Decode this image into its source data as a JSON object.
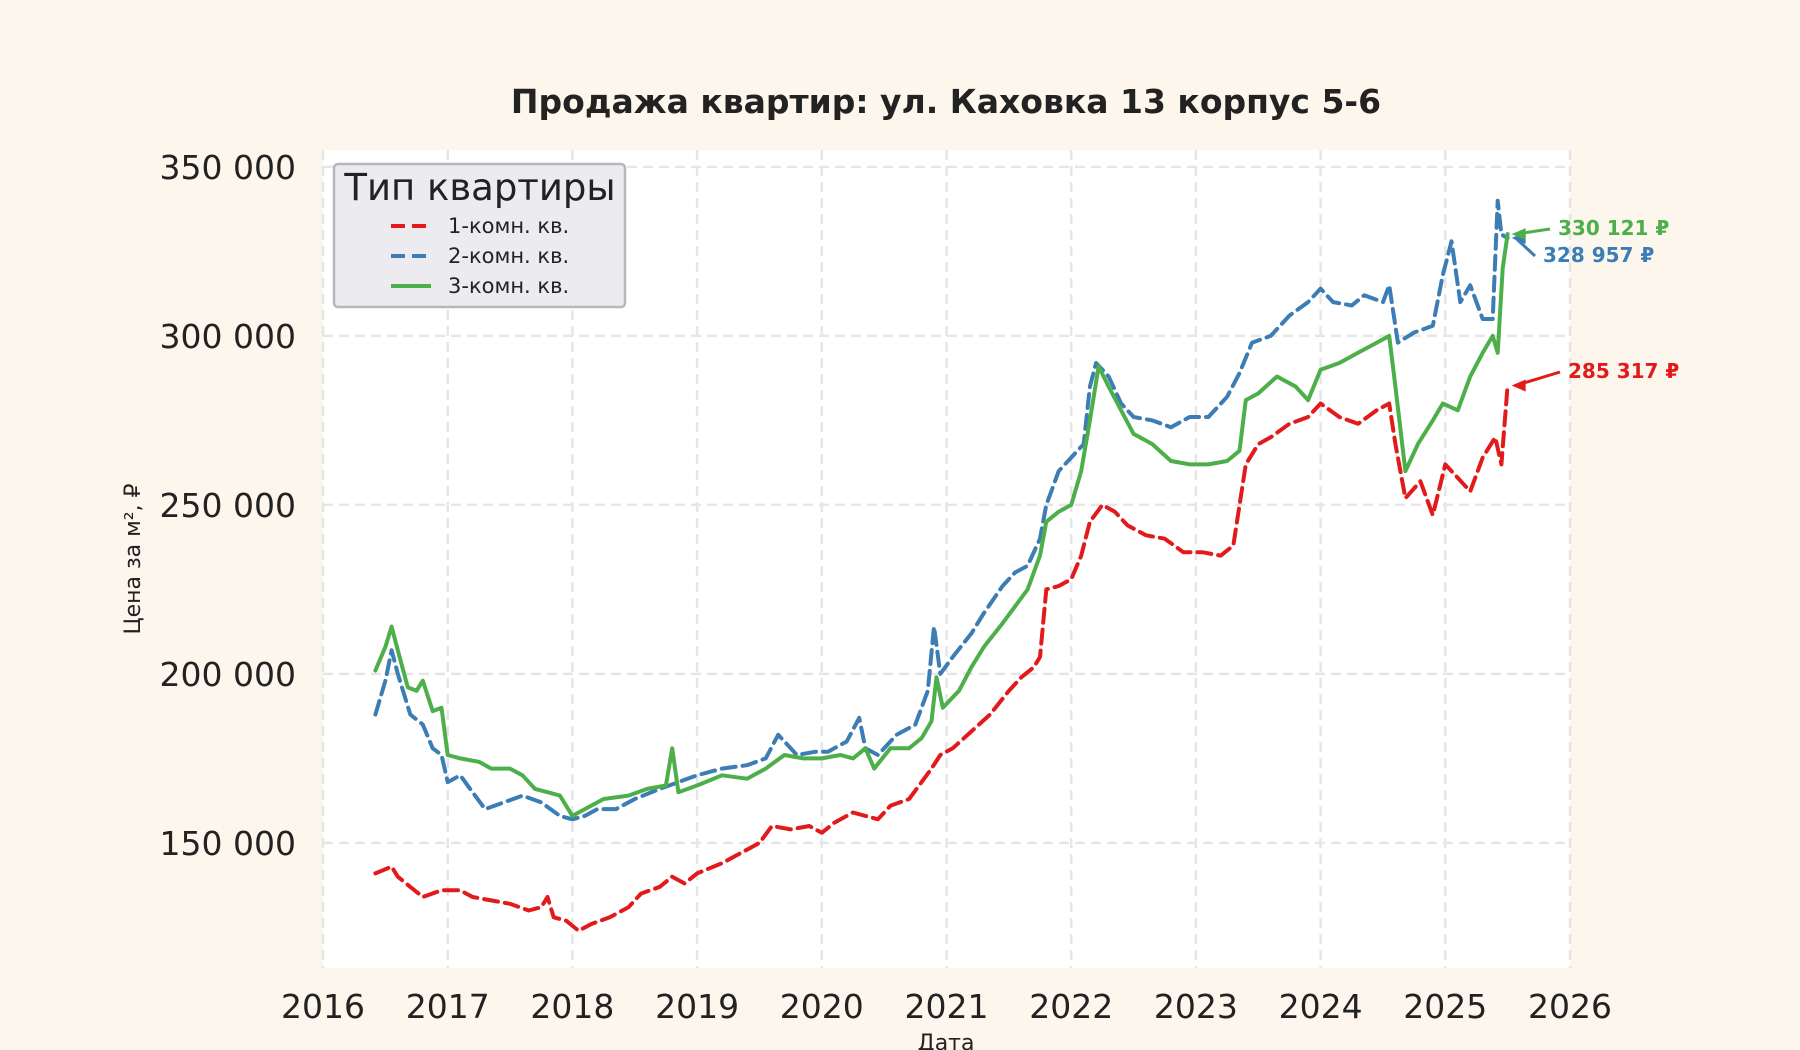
{
  "chart_data": {
    "type": "line",
    "title": "Продажа квартир: ул. Каховка 13 корпус 5-6",
    "xlabel": "Дата",
    "ylabel": "Цена за м², ₽",
    "xlim": [
      2016,
      2026
    ],
    "ylim": [
      113000,
      355000
    ],
    "x_ticks": [
      2016,
      2017,
      2018,
      2019,
      2020,
      2021,
      2022,
      2023,
      2024,
      2025,
      2026
    ],
    "x_tick_labels": [
      "2016",
      "2017",
      "2018",
      "2019",
      "2020",
      "2021",
      "2022",
      "2023",
      "2024",
      "2025",
      "2026"
    ],
    "y_ticks": [
      150000,
      200000,
      250000,
      300000,
      350000
    ],
    "y_tick_labels": [
      "150 000",
      "200 000",
      "250 000",
      "300 000",
      "350 000"
    ],
    "grid": true,
    "legend": {
      "title": "Тип квартиры",
      "placement": "top-left"
    },
    "series": [
      {
        "name": "1-комн. кв.",
        "color": "#e31a1c",
        "line_style": "dashed",
        "end_label": "285 317 ₽",
        "end_value": 285317,
        "points": [
          [
            2016.42,
            141000
          ],
          [
            2016.55,
            143000
          ],
          [
            2016.6,
            140000
          ],
          [
            2016.7,
            137000
          ],
          [
            2016.8,
            134000
          ],
          [
            2016.95,
            136000
          ],
          [
            2017.1,
            136000
          ],
          [
            2017.2,
            134000
          ],
          [
            2017.35,
            133000
          ],
          [
            2017.5,
            132000
          ],
          [
            2017.65,
            130000
          ],
          [
            2017.75,
            131000
          ],
          [
            2017.8,
            134000
          ],
          [
            2017.85,
            128000
          ],
          [
            2017.95,
            127000
          ],
          [
            2018.05,
            124000
          ],
          [
            2018.15,
            126000
          ],
          [
            2018.3,
            128000
          ],
          [
            2018.45,
            131000
          ],
          [
            2018.55,
            135000
          ],
          [
            2018.7,
            137000
          ],
          [
            2018.8,
            140000
          ],
          [
            2018.9,
            138000
          ],
          [
            2019.0,
            141000
          ],
          [
            2019.2,
            144000
          ],
          [
            2019.35,
            147000
          ],
          [
            2019.5,
            150000
          ],
          [
            2019.6,
            155000
          ],
          [
            2019.75,
            154000
          ],
          [
            2019.9,
            155000
          ],
          [
            2020.0,
            153000
          ],
          [
            2020.1,
            156000
          ],
          [
            2020.25,
            159000
          ],
          [
            2020.35,
            158000
          ],
          [
            2020.45,
            157000
          ],
          [
            2020.55,
            161000
          ],
          [
            2020.7,
            163000
          ],
          [
            2020.8,
            168000
          ],
          [
            2020.88,
            172000
          ],
          [
            2020.95,
            176000
          ],
          [
            2021.05,
            178000
          ],
          [
            2021.2,
            183000
          ],
          [
            2021.35,
            188000
          ],
          [
            2021.5,
            195000
          ],
          [
            2021.6,
            199000
          ],
          [
            2021.7,
            202000
          ],
          [
            2021.75,
            205000
          ],
          [
            2021.8,
            225000
          ],
          [
            2021.9,
            226000
          ],
          [
            2022.0,
            228000
          ],
          [
            2022.08,
            235000
          ],
          [
            2022.15,
            245000
          ],
          [
            2022.25,
            250000
          ],
          [
            2022.35,
            248000
          ],
          [
            2022.45,
            244000
          ],
          [
            2022.6,
            241000
          ],
          [
            2022.75,
            240000
          ],
          [
            2022.9,
            236000
          ],
          [
            2023.05,
            236000
          ],
          [
            2023.2,
            235000
          ],
          [
            2023.3,
            238000
          ],
          [
            2023.4,
            262000
          ],
          [
            2023.5,
            268000
          ],
          [
            2023.6,
            270000
          ],
          [
            2023.75,
            274000
          ],
          [
            2023.9,
            276000
          ],
          [
            2024.0,
            280000
          ],
          [
            2024.15,
            276000
          ],
          [
            2024.3,
            274000
          ],
          [
            2024.45,
            278000
          ],
          [
            2024.55,
            280000
          ],
          [
            2024.6,
            268000
          ],
          [
            2024.68,
            252000
          ],
          [
            2024.8,
            257000
          ],
          [
            2024.9,
            247000
          ],
          [
            2025.0,
            262000
          ],
          [
            2025.1,
            258000
          ],
          [
            2025.2,
            254000
          ],
          [
            2025.3,
            264000
          ],
          [
            2025.4,
            270000
          ],
          [
            2025.45,
            262000
          ],
          [
            2025.5,
            285317
          ]
        ]
      },
      {
        "name": "2-комн. кв.",
        "color": "#3b7db4",
        "line_style": "dashed",
        "end_label": "328 957 ₽",
        "end_value": 328957,
        "points": [
          [
            2016.42,
            188000
          ],
          [
            2016.5,
            198000
          ],
          [
            2016.55,
            207000
          ],
          [
            2016.6,
            200000
          ],
          [
            2016.7,
            188000
          ],
          [
            2016.8,
            185000
          ],
          [
            2016.88,
            178000
          ],
          [
            2016.95,
            176000
          ],
          [
            2017.0,
            168000
          ],
          [
            2017.1,
            170000
          ],
          [
            2017.2,
            165000
          ],
          [
            2017.3,
            160000
          ],
          [
            2017.45,
            162000
          ],
          [
            2017.6,
            164000
          ],
          [
            2017.75,
            162000
          ],
          [
            2017.9,
            158000
          ],
          [
            2018.0,
            157000
          ],
          [
            2018.1,
            158000
          ],
          [
            2018.2,
            160000
          ],
          [
            2018.35,
            160000
          ],
          [
            2018.5,
            163000
          ],
          [
            2018.7,
            166000
          ],
          [
            2018.85,
            168000
          ],
          [
            2019.0,
            170000
          ],
          [
            2019.2,
            172000
          ],
          [
            2019.4,
            173000
          ],
          [
            2019.55,
            175000
          ],
          [
            2019.65,
            182000
          ],
          [
            2019.8,
            176000
          ],
          [
            2019.95,
            177000
          ],
          [
            2020.05,
            177000
          ],
          [
            2020.2,
            180000
          ],
          [
            2020.3,
            187000
          ],
          [
            2020.35,
            178000
          ],
          [
            2020.45,
            176000
          ],
          [
            2020.6,
            182000
          ],
          [
            2020.75,
            185000
          ],
          [
            2020.85,
            195000
          ],
          [
            2020.9,
            214000
          ],
          [
            2020.95,
            200000
          ],
          [
            2021.05,
            205000
          ],
          [
            2021.2,
            212000
          ],
          [
            2021.3,
            218000
          ],
          [
            2021.45,
            226000
          ],
          [
            2021.55,
            230000
          ],
          [
            2021.65,
            232000
          ],
          [
            2021.75,
            240000
          ],
          [
            2021.8,
            250000
          ],
          [
            2021.9,
            260000
          ],
          [
            2022.0,
            264000
          ],
          [
            2022.1,
            268000
          ],
          [
            2022.15,
            285000
          ],
          [
            2022.2,
            292000
          ],
          [
            2022.3,
            288000
          ],
          [
            2022.4,
            280000
          ],
          [
            2022.5,
            276000
          ],
          [
            2022.65,
            275000
          ],
          [
            2022.8,
            273000
          ],
          [
            2022.95,
            276000
          ],
          [
            2023.1,
            276000
          ],
          [
            2023.25,
            282000
          ],
          [
            2023.35,
            289000
          ],
          [
            2023.45,
            298000
          ],
          [
            2023.6,
            300000
          ],
          [
            2023.75,
            306000
          ],
          [
            2023.9,
            310000
          ],
          [
            2024.0,
            314000
          ],
          [
            2024.1,
            310000
          ],
          [
            2024.25,
            309000
          ],
          [
            2024.35,
            312000
          ],
          [
            2024.5,
            310000
          ],
          [
            2024.55,
            315000
          ],
          [
            2024.62,
            298000
          ],
          [
            2024.75,
            301000
          ],
          [
            2024.9,
            303000
          ],
          [
            2024.98,
            318000
          ],
          [
            2025.05,
            328000
          ],
          [
            2025.12,
            310000
          ],
          [
            2025.2,
            315000
          ],
          [
            2025.3,
            305000
          ],
          [
            2025.38,
            305000
          ],
          [
            2025.42,
            340000
          ],
          [
            2025.45,
            330000
          ],
          [
            2025.5,
            328957
          ]
        ]
      },
      {
        "name": "3-комн. кв.",
        "color": "#4daf4a",
        "line_style": "solid",
        "end_label": "330 121 ₽",
        "end_value": 330121,
        "points": [
          [
            2016.42,
            201000
          ],
          [
            2016.5,
            208000
          ],
          [
            2016.55,
            214000
          ],
          [
            2016.6,
            207000
          ],
          [
            2016.68,
            196000
          ],
          [
            2016.75,
            195000
          ],
          [
            2016.8,
            198000
          ],
          [
            2016.88,
            189000
          ],
          [
            2016.95,
            190000
          ],
          [
            2017.0,
            176000
          ],
          [
            2017.1,
            175000
          ],
          [
            2017.25,
            174000
          ],
          [
            2017.35,
            172000
          ],
          [
            2017.5,
            172000
          ],
          [
            2017.6,
            170000
          ],
          [
            2017.7,
            166000
          ],
          [
            2017.8,
            165000
          ],
          [
            2017.9,
            164000
          ],
          [
            2018.0,
            158000
          ],
          [
            2018.1,
            160000
          ],
          [
            2018.25,
            163000
          ],
          [
            2018.45,
            164000
          ],
          [
            2018.6,
            166000
          ],
          [
            2018.75,
            167000
          ],
          [
            2018.8,
            178000
          ],
          [
            2018.85,
            165000
          ],
          [
            2019.0,
            167000
          ],
          [
            2019.2,
            170000
          ],
          [
            2019.4,
            169000
          ],
          [
            2019.55,
            172000
          ],
          [
            2019.7,
            176000
          ],
          [
            2019.85,
            175000
          ],
          [
            2020.0,
            175000
          ],
          [
            2020.15,
            176000
          ],
          [
            2020.25,
            175000
          ],
          [
            2020.35,
            178000
          ],
          [
            2020.42,
            172000
          ],
          [
            2020.55,
            178000
          ],
          [
            2020.7,
            178000
          ],
          [
            2020.8,
            181000
          ],
          [
            2020.88,
            186000
          ],
          [
            2020.92,
            199000
          ],
          [
            2020.97,
            190000
          ],
          [
            2021.1,
            195000
          ],
          [
            2021.2,
            202000
          ],
          [
            2021.3,
            208000
          ],
          [
            2021.45,
            215000
          ],
          [
            2021.55,
            220000
          ],
          [
            2021.65,
            225000
          ],
          [
            2021.75,
            235000
          ],
          [
            2021.8,
            245000
          ],
          [
            2021.9,
            248000
          ],
          [
            2022.0,
            250000
          ],
          [
            2022.08,
            260000
          ],
          [
            2022.15,
            275000
          ],
          [
            2022.22,
            291000
          ],
          [
            2022.3,
            285000
          ],
          [
            2022.4,
            278000
          ],
          [
            2022.5,
            271000
          ],
          [
            2022.65,
            268000
          ],
          [
            2022.8,
            263000
          ],
          [
            2022.95,
            262000
          ],
          [
            2023.1,
            262000
          ],
          [
            2023.25,
            263000
          ],
          [
            2023.35,
            266000
          ],
          [
            2023.4,
            281000
          ],
          [
            2023.5,
            283000
          ],
          [
            2023.65,
            288000
          ],
          [
            2023.8,
            285000
          ],
          [
            2023.9,
            281000
          ],
          [
            2024.0,
            290000
          ],
          [
            2024.15,
            292000
          ],
          [
            2024.3,
            295000
          ],
          [
            2024.45,
            298000
          ],
          [
            2024.55,
            300000
          ],
          [
            2024.6,
            285000
          ],
          [
            2024.68,
            260000
          ],
          [
            2024.78,
            268000
          ],
          [
            2024.9,
            275000
          ],
          [
            2024.98,
            280000
          ],
          [
            2025.1,
            278000
          ],
          [
            2025.2,
            288000
          ],
          [
            2025.3,
            295000
          ],
          [
            2025.38,
            300000
          ],
          [
            2025.42,
            295000
          ],
          [
            2025.46,
            320000
          ],
          [
            2025.5,
            330121
          ]
        ]
      }
    ]
  }
}
